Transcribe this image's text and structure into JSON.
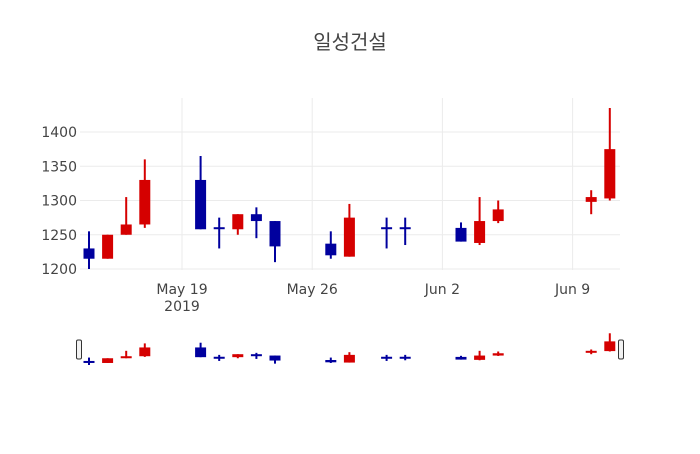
{
  "chart_data": {
    "type": "candlestick",
    "title": "일성건설",
    "xlabel": "",
    "ylabel": "",
    "ylim": [
      1195,
      1445
    ],
    "grid": true,
    "legend": "none",
    "y_ticks": [
      1200,
      1250,
      1300,
      1350,
      1400
    ],
    "x_ticks": [
      {
        "label": "May 19",
        "sublabel": "2019",
        "date": "2019-05-19"
      },
      {
        "label": "May 26",
        "sublabel": "",
        "date": "2019-05-26"
      },
      {
        "label": "Jun 2",
        "sublabel": "",
        "date": "2019-06-02"
      },
      {
        "label": "Jun 9",
        "sublabel": "",
        "date": "2019-06-09"
      }
    ],
    "colors": {
      "increasing": "#d50000",
      "decreasing": "#00009e"
    },
    "range_slider": true,
    "series": [
      {
        "date": "2019-05-14",
        "open": 1230,
        "high": 1255,
        "low": 1200,
        "close": 1215
      },
      {
        "date": "2019-05-15",
        "open": 1215,
        "high": 1250,
        "low": 1215,
        "close": 1250
      },
      {
        "date": "2019-05-16",
        "open": 1250,
        "high": 1305,
        "low": 1250,
        "close": 1265
      },
      {
        "date": "2019-05-17",
        "open": 1265,
        "high": 1360,
        "low": 1260,
        "close": 1330
      },
      {
        "date": "2019-05-20",
        "open": 1330,
        "high": 1365,
        "low": 1258,
        "close": 1258
      },
      {
        "date": "2019-05-21",
        "open": 1261,
        "high": 1275,
        "low": 1230,
        "close": 1259
      },
      {
        "date": "2019-05-22",
        "open": 1258,
        "high": 1280,
        "low": 1250,
        "close": 1280
      },
      {
        "date": "2019-05-23",
        "open": 1280,
        "high": 1290,
        "low": 1245,
        "close": 1270
      },
      {
        "date": "2019-05-24",
        "open": 1270,
        "high": 1270,
        "low": 1210,
        "close": 1233
      },
      {
        "date": "2019-05-27",
        "open": 1237,
        "high": 1255,
        "low": 1215,
        "close": 1220
      },
      {
        "date": "2019-05-28",
        "open": 1218,
        "high": 1295,
        "low": 1218,
        "close": 1275
      },
      {
        "date": "2019-05-30",
        "open": 1261,
        "high": 1275,
        "low": 1230,
        "close": 1259
      },
      {
        "date": "2019-05-31",
        "open": 1261,
        "high": 1275,
        "low": 1235,
        "close": 1259
      },
      {
        "date": "2019-06-03",
        "open": 1260,
        "high": 1268,
        "low": 1240,
        "close": 1240
      },
      {
        "date": "2019-06-04",
        "open": 1238,
        "high": 1305,
        "low": 1235,
        "close": 1270
      },
      {
        "date": "2019-06-05",
        "open": 1270,
        "high": 1300,
        "low": 1267,
        "close": 1287
      },
      {
        "date": "2019-06-10",
        "open": 1298,
        "high": 1315,
        "low": 1280,
        "close": 1305
      },
      {
        "date": "2019-06-11",
        "open": 1303,
        "high": 1435,
        "low": 1300,
        "close": 1375
      }
    ]
  }
}
